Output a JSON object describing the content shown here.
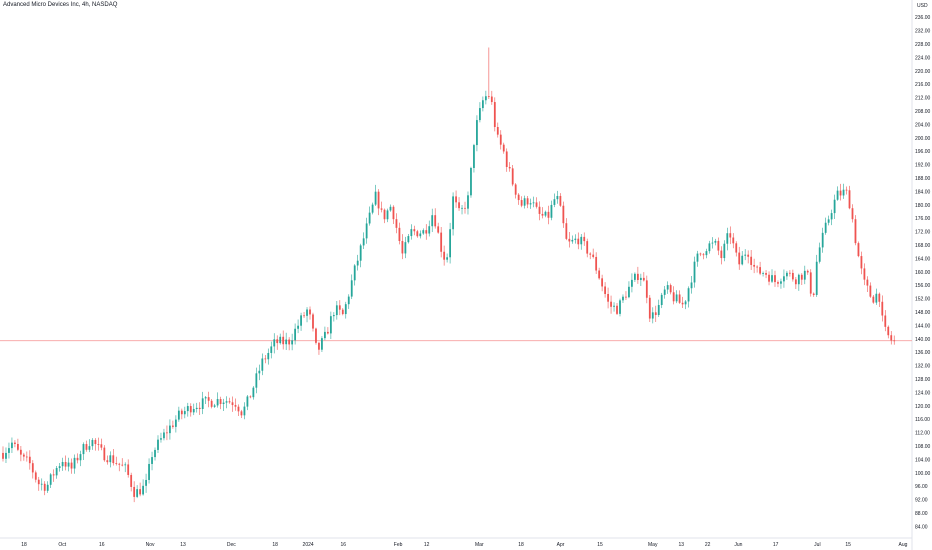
{
  "header": {
    "title": "Advanced Micro Devices Inc, 4h, NASDAQ",
    "currency": "USD"
  },
  "colors": {
    "up": "#26a69a",
    "down": "#ef5350",
    "last_price_line": "#f7a1a1",
    "axis_text": "#131722",
    "separator": "#e0e3eb"
  },
  "chart_data": {
    "type": "candlestick",
    "title": "Advanced Micro Devices Inc, 4h, NASDAQ",
    "ylabel": "USD",
    "xlabel": "",
    "ylim": [
      83,
      237
    ],
    "y_ticks": [
      84,
      88,
      92,
      96,
      100,
      104,
      108,
      112,
      116,
      120,
      124,
      128,
      132,
      136,
      140,
      144,
      148,
      152,
      156,
      160,
      164,
      168,
      172,
      176,
      180,
      184,
      188,
      192,
      196,
      200,
      204,
      208,
      212,
      216,
      220,
      224,
      228,
      232,
      236
    ],
    "x_tick_labels": [
      {
        "label": "18",
        "t": 0.48
      },
      {
        "label": "Oct",
        "t": 1.35
      },
      {
        "label": "16",
        "t": 2.25
      },
      {
        "label": "Nov",
        "t": 3.35
      },
      {
        "label": "13",
        "t": 4.1
      },
      {
        "label": "Dec",
        "t": 5.2
      },
      {
        "label": "18",
        "t": 6.2
      },
      {
        "label": "2024",
        "t": 6.95
      },
      {
        "label": "16",
        "t": 7.75
      },
      {
        "label": "Feb",
        "t": 9.0
      },
      {
        "label": "12",
        "t": 9.65
      },
      {
        "label": "Mar",
        "t": 10.85
      },
      {
        "label": "18",
        "t": 11.8
      },
      {
        "label": "Apr",
        "t": 12.7
      },
      {
        "label": "15",
        "t": 13.6
      },
      {
        "label": "May",
        "t": 14.8
      },
      {
        "label": "13",
        "t": 15.45
      },
      {
        "label": "22",
        "t": 16.05
      },
      {
        "label": "Jun",
        "t": 16.75
      },
      {
        "label": "17",
        "t": 17.6
      },
      {
        "label": "Jul",
        "t": 18.55
      },
      {
        "label": "15",
        "t": 19.25
      },
      {
        "label": "Aug",
        "t": 20.5
      }
    ],
    "keypoints": [
      [
        0,
        106
      ],
      [
        0.2,
        109
      ],
      [
        0.45,
        104
      ],
      [
        0.6,
        103
      ],
      [
        0.8,
        97
      ],
      [
        1.0,
        96
      ],
      [
        1.2,
        101
      ],
      [
        1.35,
        104
      ],
      [
        1.55,
        101
      ],
      [
        1.75,
        106
      ],
      [
        2.0,
        110
      ],
      [
        2.25,
        106
      ],
      [
        2.5,
        104
      ],
      [
        2.8,
        101
      ],
      [
        3.0,
        94
      ],
      [
        3.25,
        96
      ],
      [
        3.4,
        106
      ],
      [
        3.7,
        112
      ],
      [
        4.0,
        117
      ],
      [
        4.3,
        120
      ],
      [
        4.6,
        121
      ],
      [
        5.0,
        122
      ],
      [
        5.3,
        121
      ],
      [
        5.45,
        118
      ],
      [
        5.6,
        122
      ],
      [
        5.9,
        133
      ],
      [
        6.2,
        139
      ],
      [
        6.5,
        139
      ],
      [
        6.8,
        146
      ],
      [
        6.95,
        149
      ],
      [
        7.15,
        136
      ],
      [
        7.35,
        141
      ],
      [
        7.55,
        149
      ],
      [
        7.75,
        147
      ],
      [
        8.0,
        160
      ],
      [
        8.3,
        174
      ],
      [
        8.5,
        183
      ],
      [
        8.65,
        176
      ],
      [
        8.85,
        180
      ],
      [
        9.1,
        165
      ],
      [
        9.3,
        172
      ],
      [
        9.6,
        172
      ],
      [
        9.8,
        178
      ],
      [
        10.0,
        166
      ],
      [
        10.1,
        163
      ],
      [
        10.25,
        182
      ],
      [
        10.4,
        177
      ],
      [
        10.6,
        182
      ],
      [
        10.75,
        202
      ],
      [
        10.95,
        212
      ],
      [
        11.1,
        213
      ],
      [
        11.25,
        200
      ],
      [
        11.4,
        196
      ],
      [
        11.6,
        187
      ],
      [
        11.8,
        180
      ],
      [
        12.0,
        182
      ],
      [
        12.2,
        177
      ],
      [
        12.4,
        176
      ],
      [
        12.6,
        183
      ],
      [
        12.7,
        178
      ],
      [
        12.85,
        168
      ],
      [
        13.1,
        170
      ],
      [
        13.4,
        165
      ],
      [
        13.6,
        158
      ],
      [
        13.8,
        150
      ],
      [
        14.0,
        149
      ],
      [
        14.2,
        154
      ],
      [
        14.5,
        160
      ],
      [
        14.65,
        155
      ],
      [
        14.75,
        146
      ],
      [
        14.95,
        150
      ],
      [
        15.1,
        155
      ],
      [
        15.3,
        152
      ],
      [
        15.5,
        150
      ],
      [
        15.8,
        164
      ],
      [
        16.05,
        168
      ],
      [
        16.25,
        168
      ],
      [
        16.35,
        164
      ],
      [
        16.55,
        172
      ],
      [
        16.75,
        162
      ],
      [
        16.95,
        167
      ],
      [
        17.15,
        160
      ],
      [
        17.35,
        160
      ],
      [
        17.6,
        157
      ],
      [
        17.8,
        160
      ],
      [
        18.05,
        158
      ],
      [
        18.3,
        160
      ],
      [
        18.45,
        152
      ],
      [
        18.55,
        165
      ],
      [
        18.85,
        178
      ],
      [
        19.0,
        183
      ],
      [
        19.2,
        184
      ],
      [
        19.3,
        180
      ],
      [
        19.45,
        167
      ],
      [
        19.6,
        157
      ],
      [
        19.8,
        152
      ],
      [
        19.95,
        154
      ],
      [
        20.05,
        143
      ],
      [
        20.2,
        140
      ],
      [
        20.3,
        139
      ]
    ],
    "last_price": 139.5
  }
}
